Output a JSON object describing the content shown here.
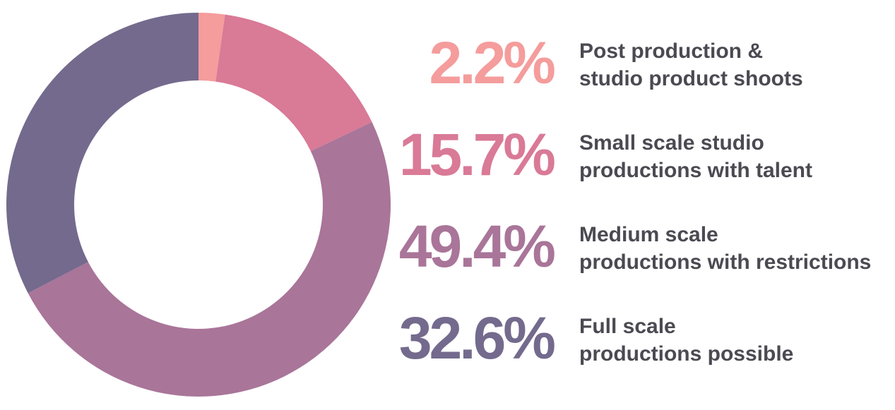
{
  "chart_data": {
    "type": "pie",
    "donut": true,
    "categories": [
      "Post production &\nstudio product shoots",
      "Small scale studio\nproductions with talent",
      "Medium scale\nproductions with restrictions",
      "Full scale\nproductions possible"
    ],
    "values": [
      2.2,
      15.7,
      49.4,
      32.6
    ],
    "value_labels": [
      "2.2%",
      "15.7%",
      "49.4%",
      "32.6%"
    ],
    "colors": [
      "#f59c9c",
      "#d97a97",
      "#a97599",
      "#746a8d"
    ]
  }
}
